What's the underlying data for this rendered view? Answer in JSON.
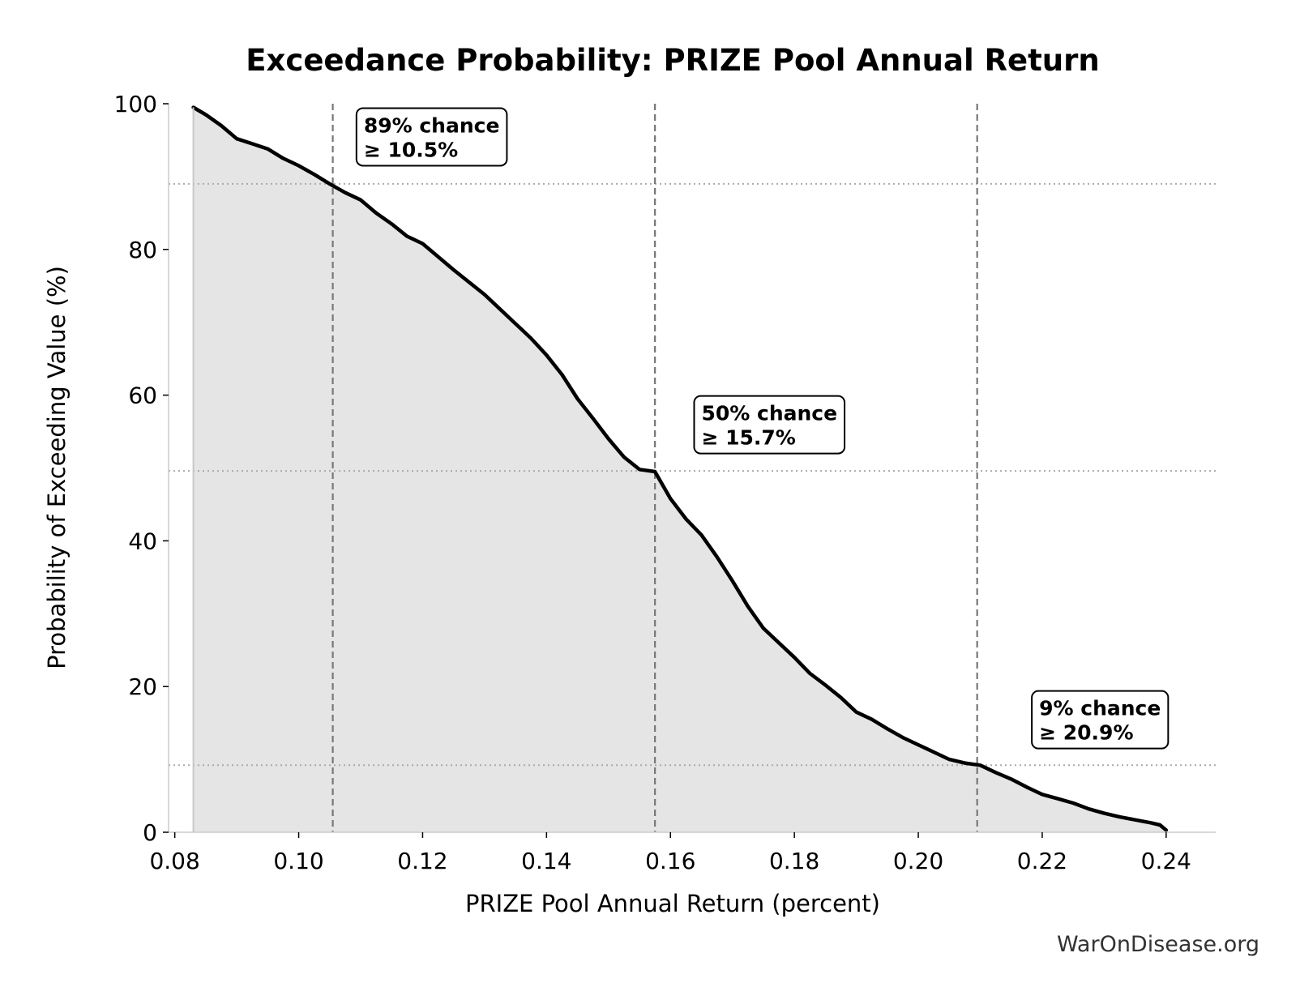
{
  "chart_data": {
    "type": "area",
    "title": "Exceedance Probability: PRIZE Pool Annual Return",
    "xlabel": "PRIZE Pool Annual Return (percent)",
    "ylabel": "Probability of Exceeding Value (%)",
    "xlim": [
      0.079,
      0.248
    ],
    "ylim": [
      0,
      100
    ],
    "x_ticks": [
      0.08,
      0.1,
      0.12,
      0.14,
      0.16,
      0.18,
      0.2,
      0.22,
      0.24
    ],
    "x_tick_labels": [
      "0.08",
      "0.10",
      "0.12",
      "0.14",
      "0.16",
      "0.18",
      "0.20",
      "0.22",
      "0.24"
    ],
    "y_ticks": [
      0,
      20,
      40,
      60,
      80,
      100
    ],
    "y_tick_labels": [
      "0",
      "20",
      "40",
      "60",
      "80",
      "100"
    ],
    "grid": false,
    "line_color": "#000000",
    "fill_color": "#e5e5e5",
    "reference_color": "#777777",
    "series": [
      {
        "x": [
          0.083,
          0.085,
          0.0875,
          0.09,
          0.0925,
          0.095,
          0.0975,
          0.1,
          0.1025,
          0.105,
          0.1075,
          0.11,
          0.1125,
          0.115,
          0.1175,
          0.12,
          0.1225,
          0.125,
          0.1275,
          0.13,
          0.1325,
          0.135,
          0.1375,
          0.14,
          0.1425,
          0.145,
          0.1475,
          0.15,
          0.1525,
          0.155,
          0.1575,
          0.16,
          0.1625,
          0.165,
          0.1675,
          0.17,
          0.1725,
          0.175,
          0.1775,
          0.18,
          0.1825,
          0.185,
          0.1875,
          0.19,
          0.1925,
          0.195,
          0.1975,
          0.2,
          0.2025,
          0.205,
          0.2075,
          0.21,
          0.2125,
          0.215,
          0.2175,
          0.22,
          0.2225,
          0.225,
          0.2275,
          0.23,
          0.2325,
          0.235,
          0.2375,
          0.239,
          0.24
        ],
        "y": [
          99.5,
          98.5,
          97.0,
          95.2,
          94.5,
          93.8,
          92.5,
          91.5,
          90.3,
          89.0,
          87.8,
          86.8,
          85.0,
          83.5,
          81.8,
          80.8,
          79.0,
          77.2,
          75.5,
          73.8,
          71.8,
          69.8,
          67.8,
          65.5,
          62.8,
          59.5,
          56.8,
          54.0,
          51.5,
          49.8,
          49.5,
          45.8,
          43.0,
          40.8,
          37.8,
          34.5,
          31.0,
          28.0,
          26.0,
          24.0,
          21.8,
          20.2,
          18.5,
          16.5,
          15.5,
          14.2,
          13.0,
          12.0,
          11.0,
          10.0,
          9.5,
          9.2,
          8.2,
          7.3,
          6.2,
          5.2,
          4.6,
          4.0,
          3.2,
          2.6,
          2.1,
          1.7,
          1.3,
          1.0,
          0.3
        ]
      }
    ],
    "reference_lines": [
      {
        "x": 0.1055,
        "y": 89
      },
      {
        "x": 0.1575,
        "y": 49.6
      },
      {
        "x": 0.2095,
        "y": 9.2
      }
    ],
    "annotations": [
      {
        "line1": "89% chance",
        "line2": "≥ 10.5%",
        "x": 0.1105,
        "y": 98.5
      },
      {
        "line1": "50% chance",
        "line2": "≥ 15.7%",
        "x": 0.165,
        "y": 59.0
      },
      {
        "line1": "9% chance",
        "line2": "≥ 20.9%",
        "x": 0.2195,
        "y": 18.5
      }
    ]
  },
  "credit": "WarOnDisease.org"
}
